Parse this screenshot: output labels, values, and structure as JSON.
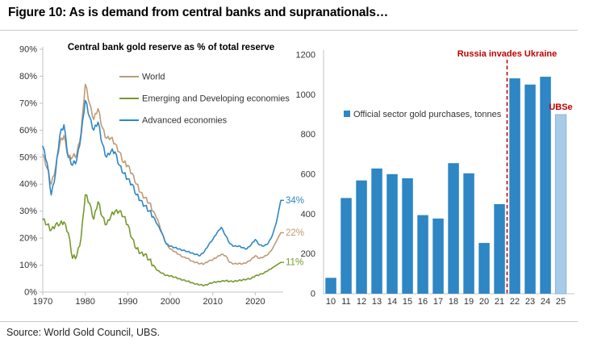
{
  "figure": {
    "title": "Figure 10: As is demand from central banks and supranationals…",
    "source": "Source: World Gold Council, UBS."
  },
  "colors": {
    "world": "#BF9B75",
    "emerging": "#78992E",
    "advanced": "#2F87C5",
    "bar": "#2E86C4",
    "bar_estimate": "#A8CBE8",
    "annotation_red": "#C00000",
    "axis": "#BFC3C7",
    "tick_text": "#333333",
    "legend_text": "#333333"
  },
  "chart_data": [
    {
      "type": "line",
      "title": "Central bank gold reserve as % of total reserve",
      "xlabel": "",
      "ylabel": "",
      "ylim": [
        0,
        90
      ],
      "ytick_step": 10,
      "ytick_suffix": "%",
      "xticks": [
        1970,
        1980,
        1990,
        2000,
        2010,
        2020
      ],
      "grid": false,
      "legend_position": "inside-top",
      "years": [
        1970,
        1971,
        1972,
        1973,
        1974,
        1975,
        1976,
        1977,
        1978,
        1979,
        1980,
        1981,
        1982,
        1983,
        1984,
        1985,
        1986,
        1987,
        1988,
        1989,
        1990,
        1991,
        1992,
        1993,
        1994,
        1995,
        1996,
        1997,
        1998,
        1999,
        2000,
        2001,
        2002,
        2003,
        2004,
        2005,
        2006,
        2007,
        2008,
        2009,
        2010,
        2011,
        2012,
        2013,
        2014,
        2015,
        2016,
        2017,
        2018,
        2019,
        2020,
        2021,
        2022,
        2023,
        2024,
        2025,
        2026
      ],
      "series": [
        {
          "name": "World",
          "color_key": "world",
          "end_label": "22%",
          "values": [
            51,
            46,
            40,
            46,
            55,
            58,
            50,
            50,
            51,
            59,
            77,
            70,
            64,
            68,
            61,
            57,
            57,
            55,
            52,
            48,
            47,
            44,
            40,
            37,
            35,
            33,
            30,
            27,
            22,
            18,
            16,
            15,
            14,
            13,
            12.5,
            11.5,
            11,
            10.5,
            10.5,
            11.5,
            12,
            13,
            14,
            13.5,
            11,
            10.5,
            10.5,
            10.5,
            11,
            12,
            13.5,
            12.5,
            13,
            14,
            16,
            19,
            22
          ]
        },
        {
          "name": "Emerging and Developing economies",
          "color_key": "emerging",
          "end_label": "11%",
          "values": [
            27,
            25,
            23,
            25,
            25,
            26,
            22,
            12.5,
            13.5,
            20,
            36,
            33,
            27,
            33.5,
            28,
            25,
            28,
            30,
            30,
            28,
            25,
            20,
            16,
            14.5,
            14,
            12,
            10,
            8,
            7,
            6.2,
            6,
            5.5,
            5,
            4.5,
            4,
            3.5,
            3,
            2.7,
            2.5,
            3,
            3.5,
            3.8,
            4,
            4.2,
            4,
            4,
            4.2,
            4.5,
            4.8,
            5,
            6,
            6.5,
            7,
            8,
            9,
            10,
            11
          ]
        },
        {
          "name": "Advanced economies",
          "color_key": "advanced",
          "end_label": "34%",
          "values": [
            54,
            48,
            36,
            44,
            58,
            62,
            50,
            47,
            49,
            58,
            71,
            65,
            60,
            63,
            55,
            50,
            52,
            52,
            47,
            44,
            42,
            40,
            36,
            34,
            32,
            30,
            28,
            25,
            22,
            18,
            17,
            16.5,
            16,
            15.5,
            15,
            14.5,
            14,
            13.5,
            15,
            17.5,
            19.5,
            22,
            24,
            21,
            18,
            17,
            17,
            16.5,
            16,
            17.5,
            19.5,
            17.5,
            17,
            18,
            21,
            26,
            34
          ]
        }
      ]
    },
    {
      "type": "bar",
      "legend": "Official sector gold purchases, tonnes",
      "categories": [
        "10",
        "11",
        "12",
        "13",
        "14",
        "15",
        "16",
        "17",
        "18",
        "19",
        "20",
        "21",
        "22",
        "23",
        "24",
        "25"
      ],
      "values": [
        80,
        481,
        569,
        629,
        601,
        580,
        395,
        378,
        656,
        605,
        255,
        450,
        1082,
        1051,
        1090,
        900
      ],
      "ylim": [
        0,
        1200
      ],
      "ytick_step": 200,
      "grid": false,
      "estimate": {
        "index": 15,
        "label": "UBSe"
      },
      "event_line": {
        "label": "Russia invades Ukraine",
        "after_category": "21"
      }
    }
  ]
}
